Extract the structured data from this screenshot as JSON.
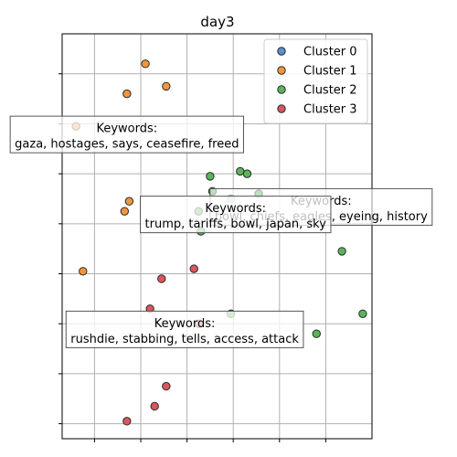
{
  "chart_data": {
    "type": "scatter",
    "title": "day3",
    "xlabel": "",
    "ylabel": "",
    "xlim": [
      -0.1,
      6.6
    ],
    "ylim": [
      -0.3,
      7.8
    ],
    "x_ticks": [
      0.6,
      1.6,
      2.6,
      3.6,
      4.6,
      5.6
    ],
    "y_ticks": [
      0.0,
      1.0,
      2.0,
      3.0,
      4.0,
      5.0,
      6.0,
      7.0
    ],
    "grid": true,
    "legend_position": "top-right",
    "colors": {
      "Cluster 0": "#5b8fd1",
      "Cluster 1": "#f0963c",
      "Cluster 2": "#5ab55a",
      "Cluster 3": "#d9575d"
    },
    "series": [
      {
        "name": "Cluster 0",
        "points": []
      },
      {
        "name": "Cluster 1",
        "points": [
          [
            1.7,
            7.2
          ],
          [
            2.15,
            6.75
          ],
          [
            1.3,
            6.6
          ],
          [
            0.2,
            5.95
          ],
          [
            1.35,
            4.45
          ],
          [
            1.25,
            4.25
          ],
          [
            0.35,
            3.05
          ]
        ]
      },
      {
        "name": "Cluster 2",
        "points": [
          [
            3.75,
            5.05
          ],
          [
            3.9,
            5.0
          ],
          [
            3.1,
            4.95
          ],
          [
            3.15,
            4.65
          ],
          [
            4.15,
            4.6
          ],
          [
            3.55,
            4.5
          ],
          [
            2.85,
            4.25
          ],
          [
            2.9,
            3.85
          ],
          [
            5.95,
            3.45
          ],
          [
            6.4,
            2.2
          ],
          [
            3.55,
            2.2
          ],
          [
            5.4,
            1.8
          ]
        ]
      },
      {
        "name": "Cluster 3",
        "points": [
          [
            2.75,
            3.1
          ],
          [
            2.05,
            2.9
          ],
          [
            1.8,
            2.3
          ],
          [
            2.85,
            2.0
          ],
          [
            2.15,
            0.75
          ],
          [
            1.9,
            0.35
          ],
          [
            1.3,
            0.05
          ]
        ]
      }
    ],
    "annotations": [
      {
        "lines": [
          "Keywords:",
          "gaza, hostages, says, ceasefire, freed"
        ],
        "anchor": [
          1.3,
          5.75
        ],
        "alpha": 0.75
      },
      {
        "lines": [
          "Keywords:",
          "bowl, chiefs, eagles, eyeing, history"
        ],
        "anchor": [
          5.5,
          4.3
        ],
        "alpha": 0.6
      },
      {
        "lines": [
          "Keywords:",
          "trump, tariffs, bowl, japan, sky"
        ],
        "anchor": [
          3.65,
          4.15
        ],
        "alpha": 0.75
      },
      {
        "lines": [
          "Keywords:",
          "rushdie, stabbing, tells, access, attack"
        ],
        "anchor": [
          2.55,
          1.85
        ],
        "alpha": 0.75
      }
    ]
  }
}
